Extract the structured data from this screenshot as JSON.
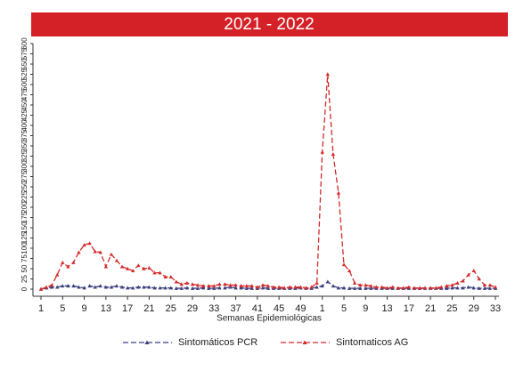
{
  "chart_data": {
    "type": "line",
    "title": "2021 - 2022",
    "x_label": "Semanas Epidemiológicas",
    "categories": [
      "1",
      null,
      null,
      null,
      "5",
      null,
      null,
      null,
      "9",
      null,
      null,
      null,
      "13",
      null,
      null,
      null,
      "17",
      null,
      null,
      null,
      "21",
      null,
      null,
      null,
      "25",
      null,
      null,
      null,
      "29",
      null,
      null,
      null,
      "33",
      null,
      null,
      null,
      "37",
      null,
      null,
      null,
      "41",
      null,
      null,
      null,
      "45",
      null,
      null,
      null,
      "49",
      null,
      null,
      null,
      "1",
      null,
      null,
      null,
      "5",
      null,
      null,
      null,
      "9",
      null,
      null,
      null,
      "13",
      null,
      null,
      null,
      "17",
      null,
      null,
      null,
      "21",
      null,
      null,
      null,
      "25",
      null,
      null,
      null,
      "29",
      null,
      null,
      null,
      "33"
    ],
    "ylim": [
      0,
      600
    ],
    "yticks": [
      0,
      25,
      50,
      75,
      100,
      125,
      150,
      175,
      200,
      225,
      250,
      275,
      300,
      325,
      350,
      375,
      400,
      425,
      450,
      475,
      500,
      525,
      550,
      575,
      600
    ],
    "series": [
      {
        "name": "Sintomáticos PCR",
        "color": "#3b3f7c",
        "values": [
          0,
          3,
          5,
          5,
          8,
          8,
          8,
          5,
          3,
          8,
          5,
          8,
          5,
          5,
          8,
          5,
          3,
          3,
          5,
          5,
          5,
          3,
          3,
          3,
          3,
          2,
          2,
          3,
          2,
          2,
          3,
          2,
          2,
          3,
          3,
          5,
          3,
          3,
          2,
          2,
          2,
          3,
          2,
          2,
          2,
          2,
          2,
          2,
          3,
          2,
          2,
          5,
          8,
          18,
          8,
          3,
          3,
          2,
          2,
          2,
          2,
          2,
          2,
          2,
          2,
          2,
          2,
          2,
          2,
          2,
          2,
          2,
          2,
          2,
          2,
          2,
          3,
          3,
          3,
          5,
          3,
          2,
          2,
          2,
          2
        ]
      },
      {
        "name": "Sintomaticos AG",
        "color": "#d42a2a",
        "values": [
          0,
          5,
          10,
          35,
          65,
          55,
          65,
          90,
          108,
          112,
          92,
          90,
          55,
          85,
          70,
          55,
          50,
          45,
          58,
          50,
          52,
          40,
          40,
          30,
          30,
          18,
          12,
          15,
          12,
          10,
          8,
          8,
          8,
          12,
          12,
          10,
          10,
          8,
          8,
          8,
          5,
          10,
          8,
          5,
          5,
          3,
          5,
          5,
          5,
          3,
          5,
          15,
          335,
          525,
          330,
          235,
          60,
          45,
          15,
          10,
          10,
          8,
          5,
          5,
          3,
          5,
          3,
          3,
          5,
          3,
          3,
          3,
          3,
          3,
          5,
          8,
          10,
          15,
          20,
          35,
          45,
          25,
          10,
          10,
          5
        ]
      }
    ]
  }
}
